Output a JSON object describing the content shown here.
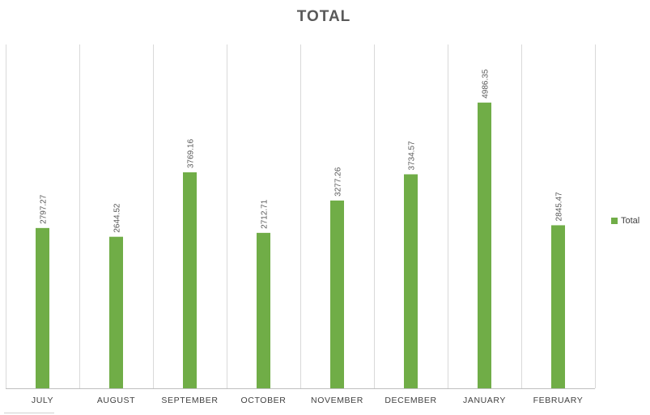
{
  "chart_data": {
    "type": "bar",
    "title": "TOTAL",
    "xlabel": "",
    "ylabel": "",
    "categories": [
      "JULY",
      "AUGUST",
      "SEPTEMBER",
      "OCTOBER",
      "NOVEMBER",
      "DECEMBER",
      "JANUARY",
      "FEBRUARY"
    ],
    "series": [
      {
        "name": "Total",
        "values": [
          2797.27,
          2644.52,
          3769.16,
          2712.71,
          3277.26,
          3734.57,
          4986.35,
          2845.47
        ],
        "value_labels": [
          "2797.27",
          "2644.52",
          "3769.16",
          "2712.71",
          "3277.26",
          "3734.57",
          "4986.35",
          "2845.47"
        ]
      }
    ],
    "ylim": [
      0,
      6000
    ],
    "y_axis_visible": false,
    "grid": "vertical category separators",
    "legend_position": "right",
    "colors": {
      "bar": "#70ad47",
      "gridline": "#d9d9d9",
      "axis_line": "#bfbfbf",
      "category_text": "#404040",
      "value_label_text": "#595959",
      "title_text": "#595959"
    }
  }
}
